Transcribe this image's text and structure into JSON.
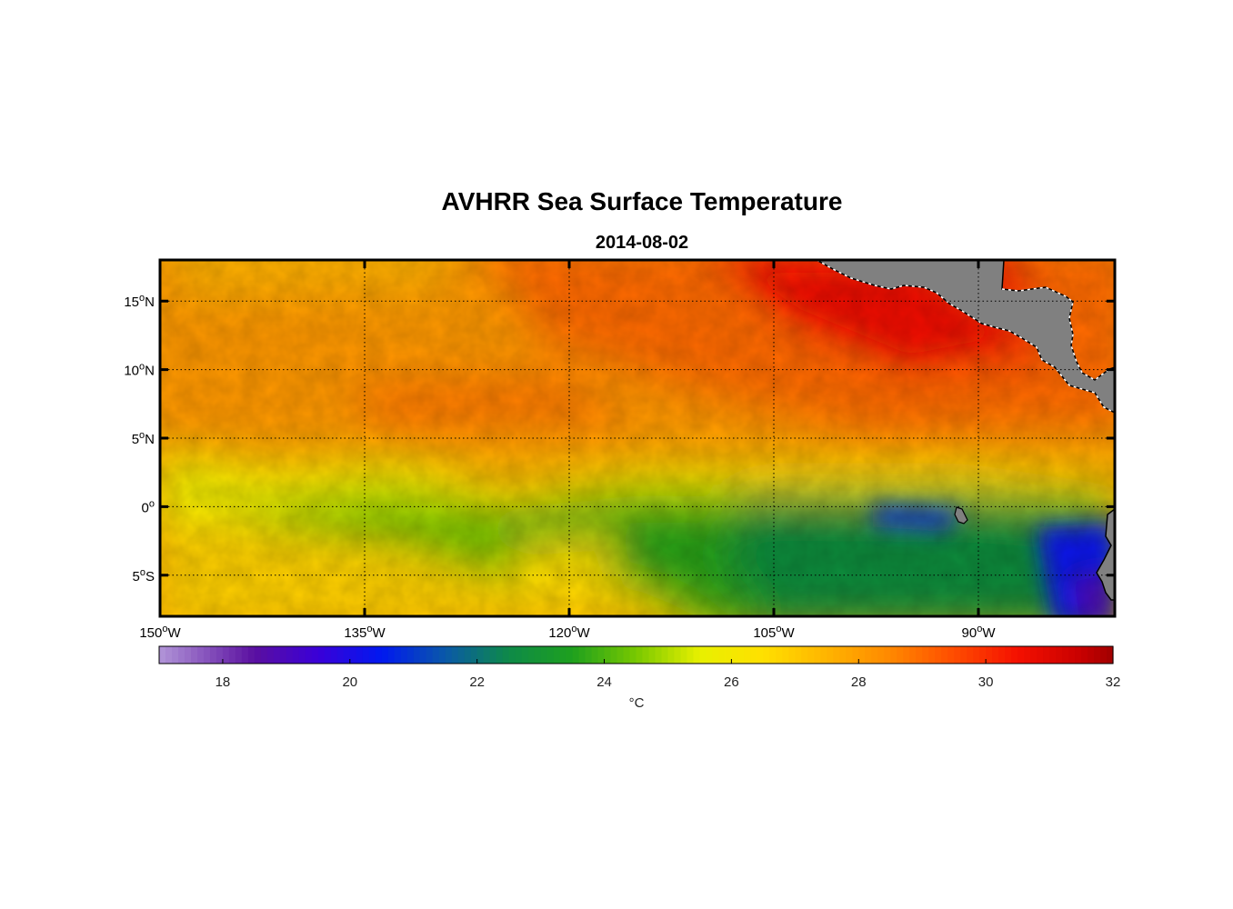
{
  "title": "AVHRR Sea Surface Temperature",
  "subtitle": "2014-08-02",
  "map": {
    "projection": "lat-lon",
    "lon_range": [
      -150,
      -80
    ],
    "lat_range": [
      -8,
      18
    ],
    "grid": "dotted",
    "land_color": "#808080",
    "x_ticks": [
      {
        "value": -150,
        "num": "150",
        "dir": "W"
      },
      {
        "value": -135,
        "num": "135",
        "dir": "W"
      },
      {
        "value": -120,
        "num": "120",
        "dir": "W"
      },
      {
        "value": -105,
        "num": "105",
        "dir": "W"
      },
      {
        "value": -90,
        "num": "90",
        "dir": "W"
      }
    ],
    "y_ticks": [
      {
        "value": 15,
        "num": "15",
        "dir": "N"
      },
      {
        "value": 10,
        "num": "10",
        "dir": "N"
      },
      {
        "value": 5,
        "num": "5",
        "dir": "N"
      },
      {
        "value": 0,
        "num": "0",
        "dir": ""
      },
      {
        "value": -5,
        "num": "5",
        "dir": "S"
      }
    ],
    "degree_mark": "o"
  },
  "colorbar": {
    "range": [
      17,
      32
    ],
    "ticks": [
      "18",
      "20",
      "22",
      "24",
      "26",
      "28",
      "30",
      "32"
    ],
    "unit_label": "°C",
    "colormap_stops": [
      {
        "value": 17,
        "color": "#b296d8"
      },
      {
        "value": 18.5,
        "color": "#5a0fa0"
      },
      {
        "value": 19.5,
        "color": "#3a00d8"
      },
      {
        "value": 20.5,
        "color": "#0019f0"
      },
      {
        "value": 21.5,
        "color": "#0a58a8"
      },
      {
        "value": 22.5,
        "color": "#0e8a48"
      },
      {
        "value": 23.5,
        "color": "#1ea01e"
      },
      {
        "value": 24.5,
        "color": "#78c800"
      },
      {
        "value": 25.5,
        "color": "#e8f000"
      },
      {
        "value": 26.5,
        "color": "#ffe000"
      },
      {
        "value": 27.5,
        "color": "#ffb400"
      },
      {
        "value": 28.5,
        "color": "#ff8800"
      },
      {
        "value": 29.5,
        "color": "#ff4c00"
      },
      {
        "value": 30.5,
        "color": "#f41000"
      },
      {
        "value": 31.5,
        "color": "#c80000"
      },
      {
        "value": 32,
        "color": "#a00000"
      }
    ]
  }
}
